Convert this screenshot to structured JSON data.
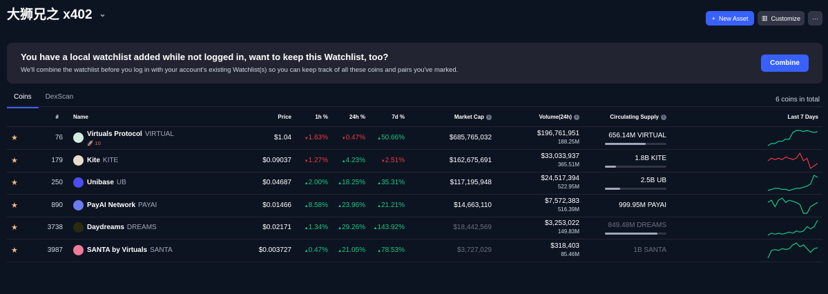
{
  "header": {
    "title": "大狮兄之 x402",
    "new_asset": "New Asset",
    "customize": "Customize",
    "more": "···"
  },
  "banner": {
    "title": "You have a local watchlist added while not logged in, want to keep this Watchlist, too?",
    "text": "We'll combine the watchlist before you log in with your account's existing Watchlist(s) so you can keep track of all these coins and pairs you've marked.",
    "combine": "Combine"
  },
  "tabs": [
    "Coins",
    "DexScan"
  ],
  "total": "6 coins in total",
  "columns": {
    "rank": "#",
    "name": "Name",
    "price": "Price",
    "h1": "1h %",
    "h24": "24h %",
    "d7": "7d %",
    "mcap": "Market Cap",
    "volume": "Volume(24h)",
    "supply": "Circulating Supply",
    "chart": "Last 7 Days"
  },
  "colors": {
    "up": "#16c784",
    "down": "#ea3943",
    "accent": "#3861fb"
  },
  "rows": [
    {
      "rank": "76",
      "name": "Virtuals Protocol",
      "symbol": "VIRTUAL",
      "badge": "🚀 10",
      "price": "$1.04",
      "h1": "1.63%",
      "h1_dir": "dn",
      "h24": "0.47%",
      "h24_dir": "dn",
      "d7": "50.66%",
      "d7_dir": "up",
      "mcap": "$685,765,032",
      "volume": "$196,761,951",
      "volume_sub": "188.25M",
      "supply": "656.14M VIRTUAL",
      "supply_pct": 66,
      "muted": false,
      "logo": "#cfeede",
      "spark": [
        2,
        3,
        3,
        4,
        4,
        5,
        5,
        8,
        9,
        9,
        8.5,
        9,
        8.5,
        8,
        8.5
      ],
      "spark_dir": "up"
    },
    {
      "rank": "179",
      "name": "Kite",
      "symbol": "KITE",
      "price": "$0.09037",
      "h1": "1.27%",
      "h1_dir": "dn",
      "h24": "4.23%",
      "h24_dir": "up",
      "d7": "2.51%",
      "d7_dir": "dn",
      "mcap": "$162,675,691",
      "volume": "$33,033,937",
      "volume_sub": "365.51M",
      "supply": "1.8B KITE",
      "supply_pct": 18,
      "muted": false,
      "logo": "#e8dccb",
      "spark": [
        6,
        7,
        6.5,
        7,
        6.5,
        7.5,
        7,
        6.5,
        7,
        9,
        6,
        7,
        3,
        4,
        5
      ],
      "spark_dir": "dn"
    },
    {
      "rank": "250",
      "name": "Unibase",
      "symbol": "UB",
      "price": "$0.04687",
      "h1": "2.00%",
      "h1_dir": "up",
      "h24": "18.25%",
      "h24_dir": "up",
      "d7": "35.31%",
      "d7_dir": "up",
      "mcap": "$117,195,948",
      "volume": "$24,517,394",
      "volume_sub": "522.95M",
      "supply": "2.5B UB",
      "supply_pct": 25,
      "muted": false,
      "logo": "#4a4df0",
      "spark": [
        2,
        2.5,
        3,
        3,
        2.5,
        2.5,
        2,
        2.5,
        3,
        3,
        3.5,
        4,
        5,
        9,
        8
      ],
      "spark_dir": "up"
    },
    {
      "rank": "890",
      "name": "PayAI Network",
      "symbol": "PAYAI",
      "price": "$0.01466",
      "h1": "8.58%",
      "h1_dir": "up",
      "h24": "23.96%",
      "h24_dir": "up",
      "d7": "21.21%",
      "d7_dir": "up",
      "mcap": "$14,663,110",
      "volume": "$7,572,383",
      "volume_sub": "516.39M",
      "supply": "999.95M PAYAI",
      "supply_pct": null,
      "muted": false,
      "logo": "#6a7cf0",
      "spark": [
        7,
        8,
        5,
        8,
        9,
        7,
        8,
        7.5,
        7,
        6,
        2,
        2,
        5,
        6,
        7
      ],
      "spark_dir": "up"
    },
    {
      "rank": "3738",
      "name": "Daydreams",
      "symbol": "DREAMS",
      "price": "$0.02171",
      "h1": "1.34%",
      "h1_dir": "up",
      "h24": "29.26%",
      "h24_dir": "up",
      "d7": "143.92%",
      "d7_dir": "up",
      "mcap": "$18,442,569",
      "volume": "$3,253,022",
      "volume_sub": "149.83M",
      "supply": "849.48M DREAMS",
      "supply_pct": 85,
      "muted": true,
      "logo": "#2a2a10",
      "spark": [
        2,
        3,
        2.5,
        3,
        2.5,
        3,
        3.5,
        3,
        4,
        3.5,
        4,
        6,
        5,
        6,
        9
      ],
      "spark_dir": "up"
    },
    {
      "rank": "3987",
      "name": "SANTA by Virtuals",
      "symbol": "SANTA",
      "price": "$0.003727",
      "h1": "0.47%",
      "h1_dir": "up",
      "h24": "21.05%",
      "h24_dir": "up",
      "d7": "78.53%",
      "d7_dir": "up",
      "mcap": "$3,727,029",
      "volume": "$318,403",
      "volume_sub": "85.46M",
      "supply": "1B SANTA",
      "supply_pct": null,
      "muted": true,
      "logo": "#f07a9a",
      "spark": [
        1,
        5,
        5.5,
        5,
        6,
        5.5,
        6,
        8,
        9,
        7,
        8,
        6,
        4,
        6,
        6.5
      ],
      "spark_dir": "up"
    }
  ]
}
